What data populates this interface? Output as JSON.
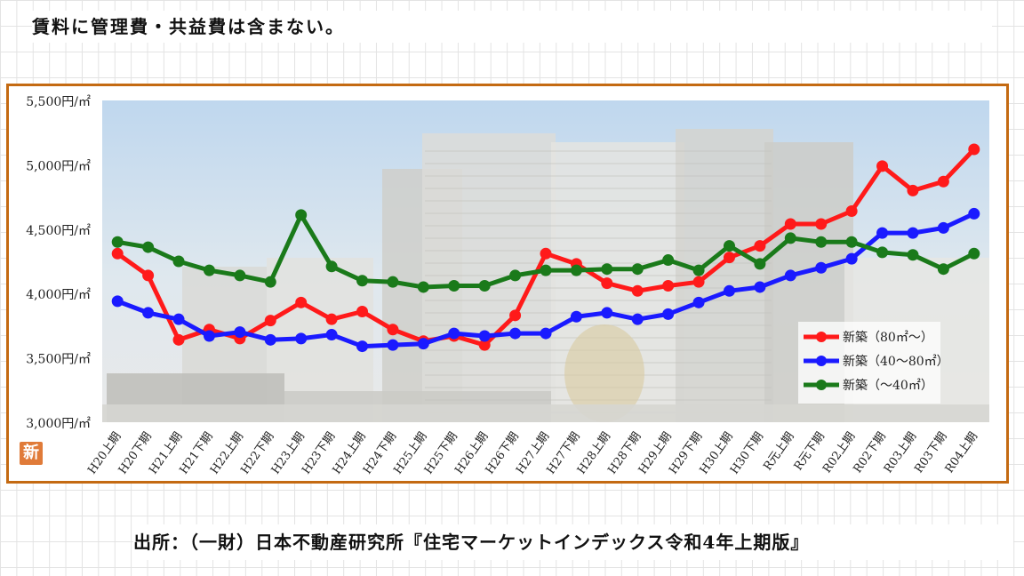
{
  "note": "賃料に管理費・共益費は含まない。",
  "source": "出所：（一財）日本不動産研究所『住宅マーケットインデックス令和4年上期版』",
  "badge_text": "新",
  "chart_data": {
    "type": "line",
    "title": "",
    "xlabel": "",
    "ylabel": "",
    "ylim": [
      3000,
      5500
    ],
    "yticks": [
      3000,
      3500,
      4000,
      4500,
      5000,
      5500
    ],
    "ytick_labels": [
      "3,000円/㎡",
      "3,500円/㎡",
      "4,000円/㎡",
      "4,500円/㎡",
      "5,000円/㎡",
      "5,500円/㎡"
    ],
    "categories": [
      "H20上期",
      "H20下期",
      "H21上期",
      "H21下期",
      "H22上期",
      "H22下期",
      "H23上期",
      "H23下期",
      "H24上期",
      "H24下期",
      "H25上期",
      "H25下期",
      "H26上期",
      "H26下期",
      "H27上期",
      "H27下期",
      "H28上期",
      "H28下期",
      "H29上期",
      "H29下期",
      "H30上期",
      "H30下期",
      "R元上期",
      "R元下期",
      "R02上期",
      "R02下期",
      "R03上期",
      "R03下期",
      "R04上期"
    ],
    "legend_position": "lower-right",
    "background": "photo of apartment buildings",
    "series": [
      {
        "name": "新築（80㎡～）",
        "color": "#ff1a1a",
        "values": [
          4310,
          4140,
          3640,
          3720,
          3650,
          3790,
          3930,
          3800,
          3860,
          3720,
          3630,
          3670,
          3600,
          3830,
          4310,
          4230,
          4080,
          4020,
          4060,
          4090,
          4280,
          4370,
          4540,
          4540,
          4640,
          4990,
          4800,
          4870,
          5120
        ]
      },
      {
        "name": "新築（40～80㎡）",
        "color": "#1a1aff",
        "values": [
          3940,
          3850,
          3800,
          3670,
          3700,
          3640,
          3650,
          3680,
          3590,
          3600,
          3610,
          3690,
          3670,
          3690,
          3690,
          3820,
          3850,
          3800,
          3840,
          3930,
          4020,
          4050,
          4140,
          4200,
          4270,
          4470,
          4470,
          4510,
          4620
        ]
      },
      {
        "name": "新築（～40㎡）",
        "color": "#1a7a1a",
        "values": [
          4400,
          4360,
          4250,
          4180,
          4140,
          4090,
          4610,
          4210,
          4100,
          4090,
          4050,
          4060,
          4060,
          4140,
          4180,
          4180,
          4190,
          4190,
          4260,
          4180,
          4370,
          4230,
          4430,
          4400,
          4400,
          4320,
          4300,
          4190,
          4310
        ]
      }
    ]
  }
}
